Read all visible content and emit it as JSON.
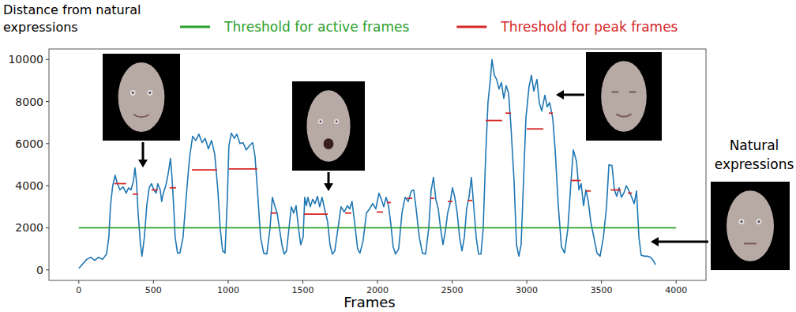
{
  "chart_data": {
    "type": "line",
    "y_label": "Distance from natural expressions",
    "x_label": "Frames",
    "annotation": "Natural expressions",
    "xlim": [
      -200,
      4200
    ],
    "ylim": [
      -500,
      10500
    ],
    "xticks": [
      0,
      500,
      1000,
      1500,
      2000,
      2500,
      3000,
      3500,
      4000
    ],
    "yticks": [
      0,
      2000,
      4000,
      6000,
      8000,
      10000
    ],
    "grid": false,
    "legend": "top",
    "series": [
      {
        "color": "#1f77b4",
        "x": [
          0,
          53,
          79,
          106,
          132,
          159,
          185,
          201,
          212,
          227,
          243,
          254,
          275,
          296,
          317,
          333,
          349,
          365,
          376,
          386,
          397,
          413,
          423,
          439,
          455,
          471,
          487,
          503,
          518,
          529,
          545,
          555,
          566,
          582,
          598,
          614,
          624,
          635,
          645,
          661,
          677,
          698,
          719,
          741,
          762,
          783,
          804,
          825,
          846,
          868,
          889,
          910,
          931,
          947,
          963,
          979,
          995,
          1005,
          1021,
          1042,
          1058,
          1079,
          1100,
          1121,
          1143,
          1164,
          1180,
          1196,
          1217,
          1238,
          1259,
          1280,
          1296,
          1312,
          1328,
          1344,
          1360,
          1375,
          1391,
          1407,
          1423,
          1439,
          1455,
          1471,
          1486,
          1502,
          1513,
          1524,
          1534,
          1550,
          1566,
          1582,
          1598,
          1613,
          1629,
          1650,
          1666,
          1682,
          1698,
          1714,
          1735,
          1756,
          1777,
          1799,
          1814,
          1830,
          1852,
          1867,
          1883,
          1904,
          1926,
          1947,
          1968,
          1989,
          2010,
          2026,
          2042,
          2058,
          2074,
          2090,
          2105,
          2121,
          2142,
          2164,
          2185,
          2206,
          2227,
          2243,
          2259,
          2280,
          2301,
          2322,
          2343,
          2359,
          2375,
          2391,
          2407,
          2423,
          2439,
          2455,
          2470,
          2486,
          2502,
          2518,
          2534,
          2550,
          2566,
          2582,
          2597,
          2613,
          2629,
          2645,
          2661,
          2677,
          2693,
          2708,
          2724,
          2740,
          2756,
          2767,
          2783,
          2798,
          2814,
          2830,
          2846,
          2862,
          2878,
          2894,
          2915,
          2931,
          2947,
          2962,
          2978,
          2994,
          3015,
          3031,
          3047,
          3068,
          3084,
          3100,
          3121,
          3137,
          3153,
          3174,
          3190,
          3211,
          3232,
          3253,
          3275,
          3296,
          3312,
          3333,
          3349,
          3364,
          3380,
          3396,
          3412,
          3428,
          3449,
          3470,
          3491,
          3513,
          3534,
          3550,
          3571,
          3587,
          3602,
          3618,
          3634,
          3650,
          3666,
          3682,
          3703,
          3719,
          3735,
          3751,
          3766,
          3788,
          3809,
          3830,
          3846,
          3862
        ],
        "values": [
          75,
          500,
          600,
          450,
          600,
          500,
          750,
          1550,
          3050,
          4000,
          4500,
          4200,
          3800,
          3950,
          3650,
          3900,
          3800,
          4200,
          4850,
          4200,
          2700,
          1200,
          650,
          1550,
          3050,
          3900,
          4100,
          3800,
          3650,
          4100,
          3800,
          3250,
          3650,
          4000,
          4550,
          5300,
          4400,
          3050,
          1550,
          800,
          800,
          1550,
          3450,
          5300,
          6350,
          6150,
          6450,
          6050,
          6250,
          5750,
          6150,
          5500,
          3800,
          1950,
          900,
          800,
          3450,
          5900,
          6500,
          6250,
          6450,
          6000,
          6050,
          5700,
          5900,
          6050,
          5400,
          3800,
          1550,
          800,
          750,
          1950,
          3450,
          3050,
          2700,
          1950,
          1200,
          750,
          900,
          1950,
          3000,
          2700,
          3050,
          2000,
          1200,
          1550,
          3450,
          3050,
          3450,
          3000,
          3350,
          3150,
          3500,
          3000,
          3450,
          2750,
          2300,
          1200,
          750,
          900,
          1950,
          3000,
          2750,
          3050,
          2900,
          3250,
          1950,
          1000,
          800,
          1400,
          2700,
          2900,
          3150,
          2900,
          3650,
          3350,
          3000,
          3450,
          3050,
          2150,
          1100,
          750,
          1000,
          2700,
          3450,
          3250,
          3750,
          3800,
          2900,
          1550,
          800,
          750,
          1950,
          3750,
          4400,
          3350,
          2900,
          1950,
          1200,
          1850,
          2700,
          3150,
          3900,
          3450,
          2700,
          1550,
          900,
          1550,
          2900,
          3450,
          4400,
          3000,
          1550,
          750,
          750,
          1950,
          5300,
          7950,
          9050,
          10000,
          9250,
          9050,
          8600,
          8900,
          8150,
          8750,
          8400,
          6800,
          4200,
          1200,
          650,
          1200,
          4200,
          7200,
          8700,
          9250,
          8500,
          9050,
          7950,
          7550,
          8300,
          7750,
          7950,
          7200,
          5700,
          3050,
          1100,
          800,
          1950,
          4200,
          5700,
          5150,
          3800,
          4100,
          3050,
          3800,
          3250,
          2300,
          1550,
          800,
          650,
          1550,
          3000,
          5000,
          4950,
          3800,
          3500,
          3900,
          3450,
          3650,
          4000,
          3800,
          3450,
          3150,
          3750,
          1550,
          700,
          650,
          650,
          600,
          450,
          250
        ]
      },
      {
        "name": "Threshold for active frames",
        "type": "segment",
        "color": "#2ca02c",
        "segments": [
          {
            "x": [
              0,
              4000
            ],
            "value": 2000
          }
        ]
      },
      {
        "name": "Threshold for peak frames",
        "type": "segment",
        "color": "#d62728",
        "segments": [
          {
            "x": [
              238,
              317
            ],
            "value": 4100
          },
          {
            "x": [
              360,
              397
            ],
            "value": 3600
          },
          {
            "x": [
              487,
              529
            ],
            "value": 3800
          },
          {
            "x": [
              608,
              651
            ],
            "value": 3900
          },
          {
            "x": [
              757,
              926
            ],
            "value": 4750
          },
          {
            "x": [
              1005,
              1196
            ],
            "value": 4800
          },
          {
            "x": [
              1286,
              1323
            ],
            "value": 2700
          },
          {
            "x": [
              1508,
              1667
            ],
            "value": 2650
          },
          {
            "x": [
              1783,
              1825
            ],
            "value": 2700
          },
          {
            "x": [
              1995,
              2037
            ],
            "value": 2750
          },
          {
            "x": [
              2063,
              2090
            ],
            "value": 3200
          },
          {
            "x": [
              2196,
              2233
            ],
            "value": 3400
          },
          {
            "x": [
              2354,
              2381
            ],
            "value": 3400
          },
          {
            "x": [
              2471,
              2503
            ],
            "value": 3250
          },
          {
            "x": [
              2603,
              2635
            ],
            "value": 3300
          },
          {
            "x": [
              2725,
              2836
            ],
            "value": 7100
          },
          {
            "x": [
              2857,
              2894
            ],
            "value": 7450
          },
          {
            "x": [
              3000,
              3111
            ],
            "value": 6700
          },
          {
            "x": [
              3148,
              3175
            ],
            "value": 7450
          },
          {
            "x": [
              3296,
              3360
            ],
            "value": 4250
          },
          {
            "x": [
              3397,
              3429
            ],
            "value": 3750
          },
          {
            "x": [
              3561,
              3630
            ],
            "value": 3800
          },
          {
            "x": [
              3677,
              3704
            ],
            "value": 3650
          }
        ]
      }
    ]
  }
}
